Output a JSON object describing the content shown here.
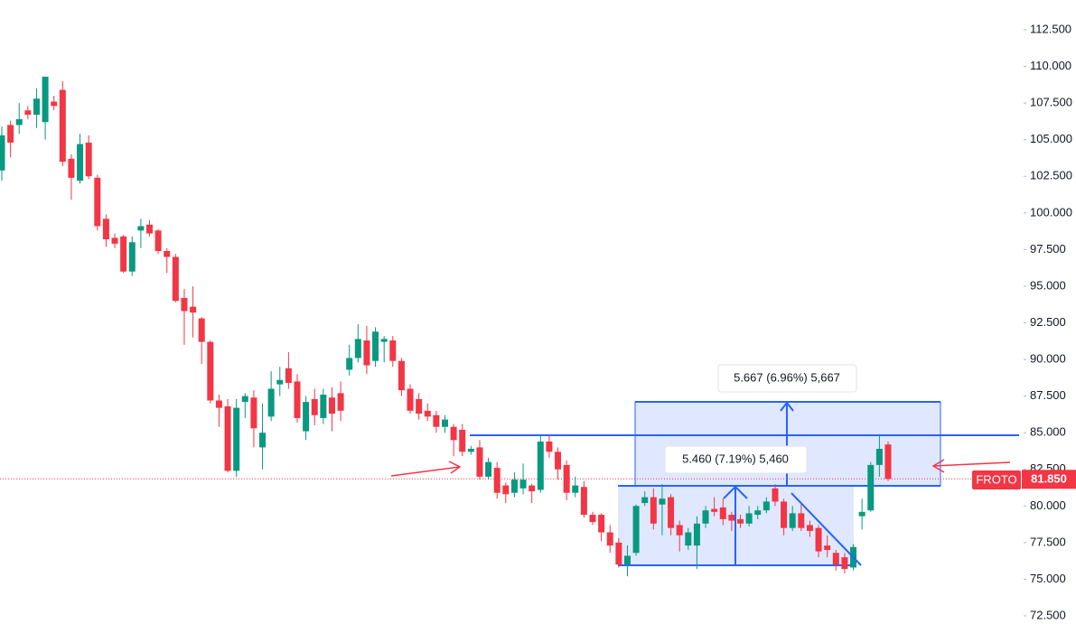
{
  "chart_data": {
    "type": "candlestick",
    "symbol": "FROTO",
    "up_color": "#089981",
    "down_color": "#f23645",
    "open": [
      102.9,
      106.0,
      106.0,
      107.0,
      106.7,
      106.2,
      107.6,
      108.4,
      103.7,
      102.2,
      104.8,
      102.4,
      99.6,
      98.3,
      98.4,
      96.0,
      98.8,
      99.2,
      98.8,
      97.4,
      97.0,
      94.2,
      93.6,
      92.8,
      91.2,
      87.2,
      86.8,
      82.4,
      87.1,
      87.4,
      84.0,
      86.1,
      88.3,
      89.4,
      88.5,
      85.1,
      87.3,
      86.0,
      87.4,
      87.7,
      89.3,
      90.1,
      91.3,
      89.9,
      91.2,
      91.3,
      89.9,
      88.0,
      87.3,
      86.5,
      86.2,
      85.4,
      85.4,
      85.2,
      83.7,
      84.0,
      82.0,
      82.6,
      81.4,
      80.9,
      81.2,
      81.4,
      81.1,
      84.4,
      83.7,
      82.8,
      80.9,
      81.3,
      79.4,
      79.4,
      78.2,
      77.5,
      76.0,
      76.8,
      80.2,
      80.6,
      80.1,
      80.6,
      78.7,
      77.3,
      77.3,
      78.8,
      79.8,
      79.9,
      79.4,
      79.1,
      78.8,
      79.4,
      79.7,
      81.2,
      80.3,
      78.5,
      79.5,
      78.7,
      78.5,
      77.3,
      76.8,
      76.5,
      75.8,
      79.3,
      79.7,
      82.8,
      84.2
    ],
    "high": [
      105.9,
      106.3,
      107.5,
      107.3,
      108.5,
      109.3,
      108.0,
      109.0,
      104.0,
      105.4,
      105.3,
      102.6,
      99.9,
      98.6,
      98.5,
      98.4,
      99.6,
      99.5,
      98.9,
      97.6,
      97.2,
      94.8,
      95.0,
      92.9,
      91.3,
      87.6,
      87.3,
      87.3,
      87.7,
      87.9,
      87.0,
      89.2,
      89.5,
      90.5,
      89.0,
      87.5,
      88.0,
      88.0,
      88.1,
      88.5,
      91.0,
      92.4,
      92.3,
      92.2,
      91.6,
      91.6,
      90.1,
      88.3,
      87.7,
      87.0,
      86.5,
      86.2,
      85.6,
      85.6,
      84.1,
      84.5,
      83.3,
      83.0,
      81.6,
      82.3,
      82.9,
      81.5,
      84.9,
      84.9,
      84.0,
      83.1,
      82.0,
      81.7,
      79.6,
      79.5,
      78.7,
      77.8,
      77.3,
      80.1,
      81.0,
      81.2,
      81.5,
      80.8,
      79.0,
      78.5,
      79.3,
      80.0,
      80.6,
      80.5,
      79.6,
      79.4,
      80.0,
      80.0,
      80.6,
      81.5,
      80.5,
      80.0,
      80.2,
      79.0,
      78.7,
      78.0,
      77.0,
      76.8,
      77.4,
      80.5,
      83.0,
      84.9,
      84.4
    ],
    "low": [
      102.2,
      103.8,
      105.4,
      106.4,
      105.8,
      105.0,
      107.0,
      103.2,
      100.9,
      102.0,
      102.3,
      98.8,
      97.7,
      97.6,
      95.9,
      95.7,
      97.6,
      98.4,
      97.2,
      95.9,
      93.9,
      91.0,
      91.5,
      89.7,
      87.0,
      85.4,
      82.3,
      82.0,
      86.0,
      84.0,
      82.5,
      85.8,
      87.5,
      88.0,
      85.7,
      84.5,
      85.5,
      85.6,
      85.1,
      85.8,
      88.9,
      89.8,
      89.0,
      89.5,
      89.8,
      89.5,
      87.5,
      86.3,
      85.9,
      85.8,
      85.0,
      85.0,
      83.4,
      83.4,
      83.5,
      81.8,
      81.8,
      80.5,
      80.2,
      80.6,
      80.8,
      80.2,
      80.9,
      83.3,
      81.8,
      80.4,
      80.6,
      79.2,
      78.7,
      77.6,
      76.8,
      75.8,
      75.2,
      76.6,
      80.0,
      78.4,
      78.0,
      78.0,
      76.9,
      77.0,
      75.7,
      78.5,
      79.3,
      78.7,
      78.3,
      78.5,
      78.6,
      79.1,
      79.5,
      80.0,
      78.0,
      78.3,
      78.3,
      77.9,
      76.5,
      76.5,
      75.6,
      75.4,
      75.6,
      78.4,
      79.6,
      82.0,
      81.7
    ],
    "close": [
      105.3,
      104.8,
      106.4,
      106.7,
      107.8,
      109.3,
      107.3,
      103.5,
      102.4,
      104.7,
      102.5,
      99.1,
      98.2,
      97.9,
      96.0,
      98.0,
      99.1,
      98.6,
      97.4,
      97.0,
      94.0,
      93.3,
      93.2,
      91.2,
      87.2,
      86.7,
      82.4,
      86.7,
      87.5,
      85.3,
      85.0,
      88.0,
      88.6,
      88.4,
      86.0,
      87.1,
      86.2,
      87.6,
      86.3,
      86.5,
      90.1,
      91.4,
      89.6,
      91.9,
      91.4,
      89.9,
      87.9,
      86.5,
      86.3,
      86.1,
      85.4,
      85.9,
      84.5,
      83.7,
      83.9,
      82.0,
      83.0,
      80.9,
      80.8,
      81.8,
      81.8,
      81.0,
      84.4,
      83.7,
      82.5,
      80.9,
      81.4,
      79.4,
      78.9,
      78.2,
      77.3,
      76.0,
      76.6,
      80.0,
      80.6,
      78.8,
      80.5,
      78.5,
      78.0,
      78.2,
      78.8,
      79.7,
      79.6,
      79.1,
      79.0,
      78.8,
      79.5,
      79.7,
      80.3,
      80.3,
      78.5,
      79.5,
      78.5,
      78.3,
      76.9,
      77.0,
      76.0,
      75.7,
      77.2,
      79.6,
      82.8,
      83.9,
      81.85
    ],
    "ylim": [
      72.5,
      112.5
    ],
    "yticks": [
      {
        "value": 112.5,
        "label": "112.500"
      },
      {
        "value": 110,
        "label": "110.000"
      },
      {
        "value": 107.5,
        "label": "107.500"
      },
      {
        "value": 105,
        "label": "105.000"
      },
      {
        "value": 102.5,
        "label": "102.500"
      },
      {
        "value": 100,
        "label": "100.000"
      },
      {
        "value": 97.5,
        "label": "97.500"
      },
      {
        "value": 95,
        "label": "95.000"
      },
      {
        "value": 92.5,
        "label": "92.500"
      },
      {
        "value": 90,
        "label": "90.000"
      },
      {
        "value": 87.5,
        "label": "87.500"
      },
      {
        "value": 85,
        "label": "85.000"
      },
      {
        "value": 82.5,
        "label": "82.500"
      },
      {
        "value": 80,
        "label": "80.000"
      },
      {
        "value": 77.5,
        "label": "77.500"
      },
      {
        "value": 75,
        "label": "75.000"
      },
      {
        "value": 72.5,
        "label": "72.500"
      }
    ],
    "last_price": {
      "value": 81.85,
      "label": "81.850"
    },
    "annotations": [
      "5.667 (6.96%) 5,667",
      "5.460 (7.19%) 5,460"
    ]
  }
}
